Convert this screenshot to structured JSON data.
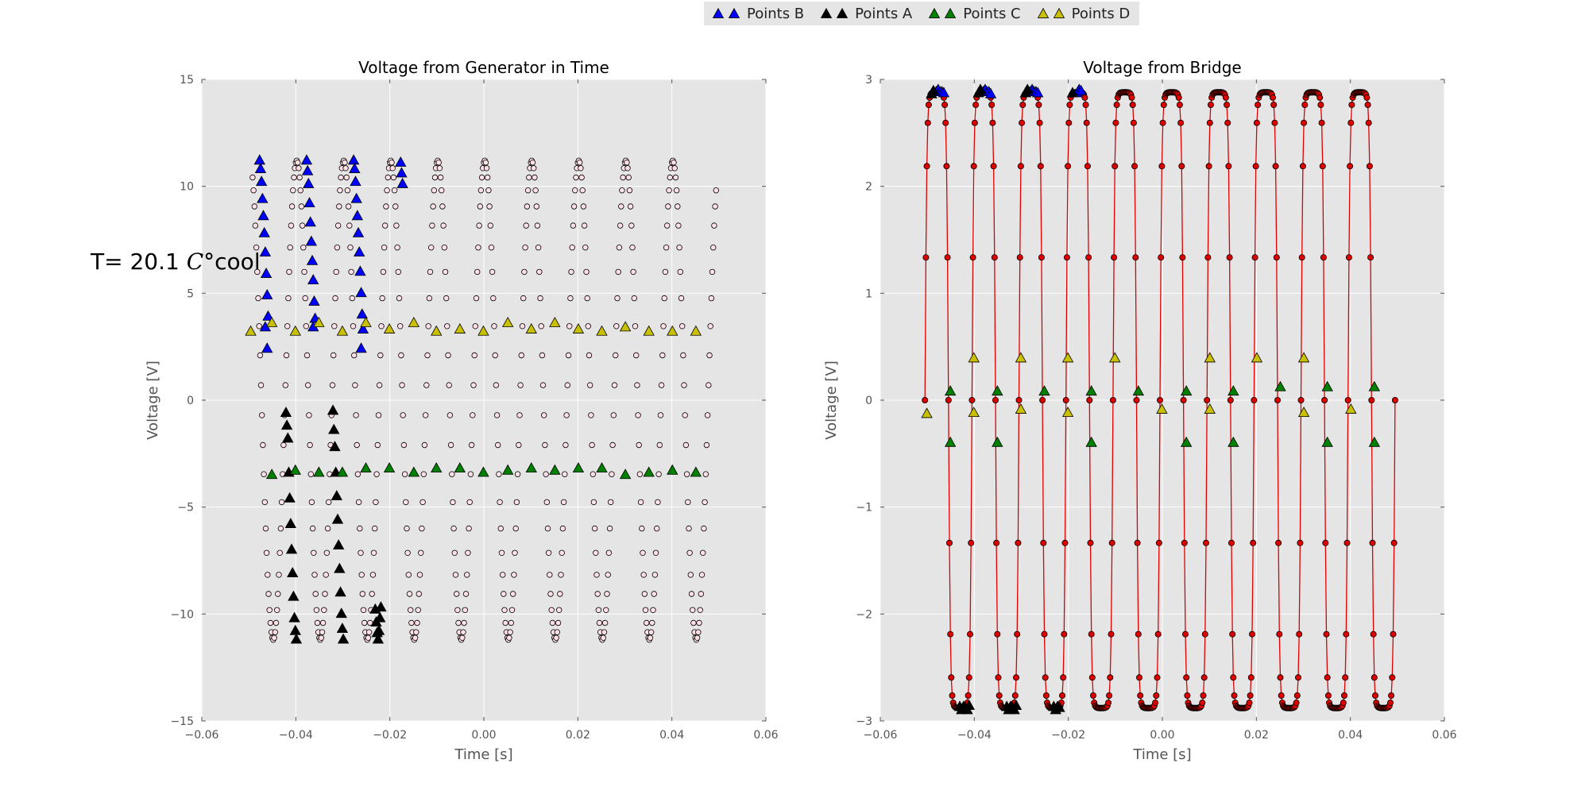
{
  "legend": [
    {
      "label": "Points B",
      "color": "#0000ff"
    },
    {
      "label": "Points A",
      "color": "#000000"
    },
    {
      "label": "Points C",
      "color": "#008000"
    },
    {
      "label": "Points D",
      "color": "#c8c000"
    }
  ],
  "annotation": {
    "prefix": "T= 20.1 ",
    "symbol": "C°",
    "suffix": "cool"
  },
  "chart_data": [
    {
      "type": "scatter",
      "title": "Voltage from Generator in Time",
      "xlabel": "Time [s]",
      "ylabel": "Voltage [V]",
      "xlim": [
        -0.06,
        0.06
      ],
      "ylim": [
        -15,
        15
      ],
      "xticks": [
        "−0.06",
        "−0.04",
        "−0.02",
        "0.00",
        "0.02",
        "0.04",
        "0.06"
      ],
      "yticks": [
        "−15",
        "−10",
        "−5",
        "0",
        "5",
        "10",
        "15"
      ],
      "grid": true,
      "signal": {
        "name": "",
        "amplitude": 11.2,
        "frequency_hz": 100,
        "phase_shift_s": 0.0023,
        "t_start": -0.0492,
        "t_end": 0.0495,
        "sample_step": 0.0002,
        "marker": "circle",
        "fill": "#ffe0e6",
        "edge": "#000000"
      },
      "series": [
        {
          "name": "Points B",
          "color": "#0000ff",
          "marker": "triangle",
          "points": [
            [
              -0.0477,
              11.2
            ],
            [
              -0.0475,
              10.8
            ],
            [
              -0.0473,
              10.2
            ],
            [
              -0.0471,
              9.4
            ],
            [
              -0.0469,
              8.6
            ],
            [
              -0.0467,
              7.8
            ],
            [
              -0.0465,
              6.9
            ],
            [
              -0.0463,
              5.9
            ],
            [
              -0.0461,
              4.9
            ],
            [
              -0.0459,
              3.9
            ],
            [
              -0.0465,
              3.4
            ],
            [
              -0.0461,
              2.4
            ],
            [
              -0.0377,
              11.2
            ],
            [
              -0.0375,
              10.7
            ],
            [
              -0.0373,
              10.1
            ],
            [
              -0.0371,
              9.2
            ],
            [
              -0.0369,
              8.3
            ],
            [
              -0.0367,
              7.4
            ],
            [
              -0.0365,
              6.5
            ],
            [
              -0.0363,
              5.6
            ],
            [
              -0.0361,
              4.6
            ],
            [
              -0.0359,
              3.8
            ],
            [
              -0.0363,
              3.4
            ],
            [
              -0.0277,
              11.2
            ],
            [
              -0.0275,
              10.8
            ],
            [
              -0.0273,
              10.2
            ],
            [
              -0.0271,
              9.4
            ],
            [
              -0.0269,
              8.6
            ],
            [
              -0.0267,
              7.8
            ],
            [
              -0.0265,
              6.9
            ],
            [
              -0.0263,
              6.0
            ],
            [
              -0.0261,
              5.0
            ],
            [
              -0.0259,
              4.0
            ],
            [
              -0.0257,
              3.3
            ],
            [
              -0.0261,
              2.4
            ],
            [
              -0.0177,
              11.1
            ],
            [
              -0.0175,
              10.6
            ],
            [
              -0.0173,
              10.1
            ]
          ]
        },
        {
          "name": "Points A",
          "color": "#000000",
          "marker": "triangle",
          "points": [
            [
              -0.0421,
              -0.6
            ],
            [
              -0.0419,
              -1.2
            ],
            [
              -0.0417,
              -1.8
            ],
            [
              -0.0415,
              -3.4
            ],
            [
              -0.0413,
              -4.6
            ],
            [
              -0.0411,
              -5.8
            ],
            [
              -0.0409,
              -7.0
            ],
            [
              -0.0407,
              -8.1
            ],
            [
              -0.0405,
              -9.2
            ],
            [
              -0.0403,
              -10.2
            ],
            [
              -0.0401,
              -10.8
            ],
            [
              -0.0399,
              -11.2
            ],
            [
              -0.0321,
              -0.5
            ],
            [
              -0.0319,
              -1.4
            ],
            [
              -0.0317,
              -2.2
            ],
            [
              -0.0315,
              -3.4
            ],
            [
              -0.0313,
              -4.5
            ],
            [
              -0.0311,
              -5.6
            ],
            [
              -0.0309,
              -6.8
            ],
            [
              -0.0307,
              -7.9
            ],
            [
              -0.0305,
              -9.0
            ],
            [
              -0.0303,
              -10.0
            ],
            [
              -0.0301,
              -10.7
            ],
            [
              -0.0299,
              -11.2
            ],
            [
              -0.0231,
              -9.8
            ],
            [
              -0.0229,
              -10.4
            ],
            [
              -0.0227,
              -10.9
            ],
            [
              -0.0225,
              -11.2
            ],
            [
              -0.0223,
              -10.8
            ],
            [
              -0.0221,
              -10.2
            ],
            [
              -0.0219,
              -9.7
            ]
          ]
        },
        {
          "name": "Points C",
          "color": "#008000",
          "marker": "triangle",
          "points": [
            [
              -0.0451,
              -3.5
            ],
            [
              -0.0401,
              -3.3
            ],
            [
              -0.0351,
              -3.4
            ],
            [
              -0.0301,
              -3.4
            ],
            [
              -0.0251,
              -3.2
            ],
            [
              -0.0201,
              -3.2
            ],
            [
              -0.0149,
              -3.4
            ],
            [
              -0.0101,
              -3.2
            ],
            [
              -0.0051,
              -3.2
            ],
            [
              -0.0001,
              -3.4
            ],
            [
              0.0051,
              -3.3
            ],
            [
              0.0101,
              -3.2
            ],
            [
              0.0151,
              -3.3
            ],
            [
              0.0201,
              -3.2
            ],
            [
              0.0251,
              -3.2
            ],
            [
              0.0301,
              -3.5
            ],
            [
              0.0351,
              -3.4
            ],
            [
              0.0401,
              -3.3
            ],
            [
              0.0451,
              -3.4
            ]
          ]
        },
        {
          "name": "Points D",
          "color": "#c8c000",
          "marker": "triangle",
          "points": [
            [
              -0.0496,
              3.2
            ],
            [
              -0.0451,
              3.6
            ],
            [
              -0.0401,
              3.2
            ],
            [
              -0.0351,
              3.6
            ],
            [
              -0.0301,
              3.2
            ],
            [
              -0.0251,
              3.6
            ],
            [
              -0.0201,
              3.3
            ],
            [
              -0.0149,
              3.6
            ],
            [
              -0.0101,
              3.2
            ],
            [
              -0.0051,
              3.3
            ],
            [
              -0.0001,
              3.2
            ],
            [
              0.0051,
              3.6
            ],
            [
              0.0101,
              3.3
            ],
            [
              0.0151,
              3.6
            ],
            [
              0.0201,
              3.3
            ],
            [
              0.0251,
              3.2
            ],
            [
              0.0301,
              3.4
            ],
            [
              0.0351,
              3.2
            ],
            [
              0.0401,
              3.2
            ],
            [
              0.0451,
              3.2
            ]
          ]
        }
      ]
    },
    {
      "type": "line",
      "title": "Voltage from Bridge",
      "xlabel": "Time [s]",
      "ylabel": "Voltage [V]",
      "xlim": [
        -0.06,
        0.06
      ],
      "ylim": [
        -3,
        3
      ],
      "xticks": [
        "−0.06",
        "−0.04",
        "−0.02",
        "0.00",
        "0.02",
        "0.04",
        "0.06"
      ],
      "yticks": [
        "−3",
        "−2",
        "−1",
        "0",
        "1",
        "2",
        "3"
      ],
      "grid": true,
      "signal": {
        "name": "",
        "shape": "rectified-square",
        "amplitude": 2.88,
        "frequency_hz": 100,
        "t_start": -0.0505,
        "t_end": 0.0495,
        "sample_step": 0.0002,
        "marker": "circle",
        "fill": "#dd0000",
        "edge": "#000000",
        "line_color": "#dd0000"
      },
      "series": [
        {
          "name": "Points B",
          "color": "#0000ff",
          "marker": "triangle",
          "points": [
            [
              -0.0481,
              2.88
            ],
            [
              -0.0477,
              2.9
            ],
            [
              -0.0473,
              2.88
            ],
            [
              -0.0469,
              2.88
            ],
            [
              -0.0465,
              2.87
            ],
            [
              -0.0381,
              2.88
            ],
            [
              -0.0377,
              2.9
            ],
            [
              -0.0373,
              2.88
            ],
            [
              -0.0369,
              2.88
            ],
            [
              -0.0365,
              2.86
            ],
            [
              -0.0281,
              2.88
            ],
            [
              -0.0277,
              2.9
            ],
            [
              -0.0273,
              2.88
            ],
            [
              -0.0269,
              2.88
            ],
            [
              -0.0265,
              2.87
            ],
            [
              -0.0181,
              2.87
            ],
            [
              -0.0177,
              2.9
            ],
            [
              -0.0173,
              2.89
            ]
          ]
        },
        {
          "name": "Points A",
          "color": "#000000",
          "marker": "triangle",
          "points": [
            [
              -0.0491,
              2.86
            ],
            [
              -0.0487,
              2.89
            ],
            [
              -0.0391,
              2.87
            ],
            [
              -0.0387,
              2.9
            ],
            [
              -0.0291,
              2.87
            ],
            [
              -0.0287,
              2.9
            ],
            [
              -0.0191,
              2.87
            ],
            [
              -0.0431,
              -2.87
            ],
            [
              -0.0427,
              -2.9
            ],
            [
              -0.0423,
              -2.87
            ],
            [
              -0.0419,
              -2.88
            ],
            [
              -0.0415,
              -2.9
            ],
            [
              -0.0411,
              -2.86
            ],
            [
              -0.0331,
              -2.87
            ],
            [
              -0.0327,
              -2.9
            ],
            [
              -0.0323,
              -2.87
            ],
            [
              -0.0319,
              -2.88
            ],
            [
              -0.0315,
              -2.9
            ],
            [
              -0.0311,
              -2.86
            ],
            [
              -0.0231,
              -2.87
            ],
            [
              -0.0227,
              -2.9
            ],
            [
              -0.0223,
              -2.87
            ],
            [
              -0.0219,
              -2.88
            ]
          ]
        },
        {
          "name": "Points C",
          "color": "#008000",
          "marker": "triangle",
          "points": [
            [
              -0.0451,
              0.08
            ],
            [
              -0.0451,
              -0.4
            ],
            [
              -0.0351,
              0.08
            ],
            [
              -0.0351,
              -0.4
            ],
            [
              -0.0251,
              0.08
            ],
            [
              -0.0151,
              0.08
            ],
            [
              -0.0151,
              -0.4
            ],
            [
              -0.0051,
              0.08
            ],
            [
              0.0051,
              0.08
            ],
            [
              0.0051,
              -0.4
            ],
            [
              0.0151,
              0.08
            ],
            [
              0.0151,
              -0.4
            ],
            [
              0.0251,
              0.12
            ],
            [
              0.0351,
              0.12
            ],
            [
              0.0351,
              -0.4
            ],
            [
              0.0451,
              0.12
            ],
            [
              0.0451,
              -0.4
            ]
          ]
        },
        {
          "name": "Points D",
          "color": "#c8c000",
          "marker": "triangle",
          "points": [
            [
              -0.0501,
              -0.13
            ],
            [
              -0.0401,
              0.39
            ],
            [
              -0.0401,
              -0.12
            ],
            [
              -0.0301,
              0.39
            ],
            [
              -0.0301,
              -0.09
            ],
            [
              -0.0201,
              0.39
            ],
            [
              -0.0201,
              -0.12
            ],
            [
              -0.0101,
              0.39
            ],
            [
              -0.0001,
              -0.09
            ],
            [
              0.0101,
              0.39
            ],
            [
              0.0101,
              -0.09
            ],
            [
              0.0201,
              0.39
            ],
            [
              0.0301,
              0.39
            ],
            [
              0.0301,
              -0.12
            ],
            [
              0.0401,
              -0.09
            ]
          ]
        }
      ]
    }
  ]
}
